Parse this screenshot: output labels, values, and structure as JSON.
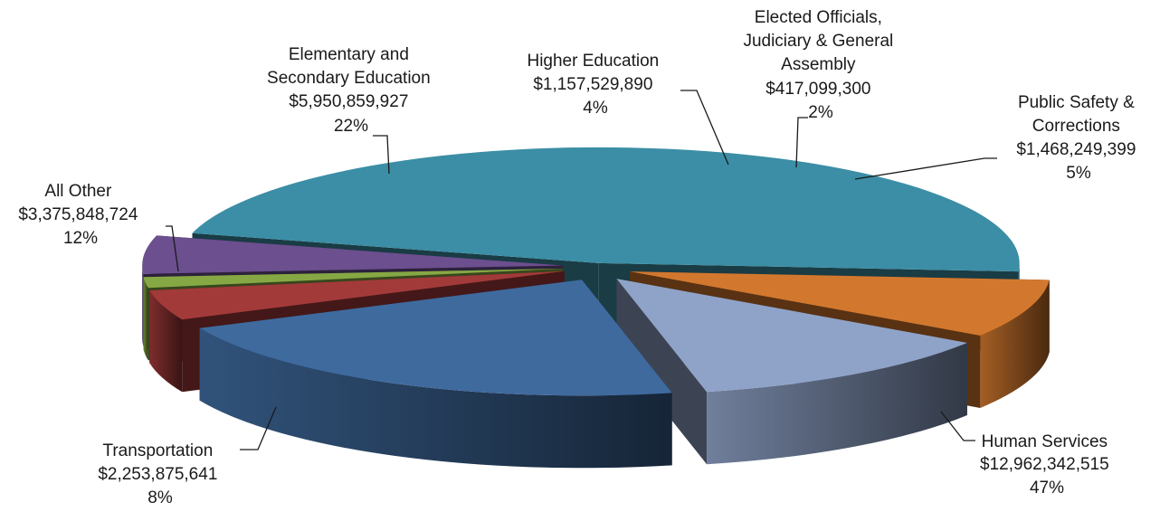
{
  "chart_data": {
    "type": "pie",
    "style": "3d-exploded",
    "legend": "none",
    "slices": [
      {
        "name": "Human Services",
        "value": 12962342515,
        "value_label": "$12,962,342,515",
        "percent_label": "47%",
        "color": "#3B8EA5"
      },
      {
        "name": "Transportation",
        "value": 2253875641,
        "value_label": "$2,253,875,641",
        "percent_label": "8%",
        "color": "#D2782E"
      },
      {
        "name": "All Other",
        "value": 3375848724,
        "value_label": "$3,375,848,724",
        "percent_label": "12%",
        "color": "#8FA3C8"
      },
      {
        "name": "Elementary and Secondary Education",
        "value": 5950859927,
        "value_label": "$5,950,859,927",
        "percent_label": "22%",
        "color": "#3F6A9E"
      },
      {
        "name": "Higher Education",
        "value": 1157529890,
        "value_label": "$1,157,529,890",
        "percent_label": "4%",
        "color": "#A33A3A"
      },
      {
        "name": "Elected Officials, Judiciary & General Assembly",
        "value": 417099300,
        "value_label": "$417,099,300",
        "percent_label": "2%",
        "color": "#86A844"
      },
      {
        "name": "Public Safety & Corrections",
        "value": 1468249399,
        "value_label": "$1,468,249,399",
        "percent_label": "5%",
        "color": "#6B4F8E"
      }
    ]
  },
  "labels": {
    "human_services": {
      "line1": "Human Services",
      "line2": "$12,962,342,515",
      "line3": "47%"
    },
    "transportation": {
      "line1": "Transportation",
      "line2": "$2,253,875,641",
      "line3": "8%"
    },
    "all_other": {
      "line1": "All Other",
      "line2": "$3,375,848,724",
      "line3": "12%"
    },
    "elementary": {
      "line1": "Elementary and",
      "line2": "Secondary Education",
      "line3": "$5,950,859,927",
      "line4": "22%"
    },
    "higher_ed": {
      "line1": "Higher Education",
      "line2": "$1,157,529,890",
      "line3": "4%"
    },
    "elected": {
      "line1": "Elected Officials,",
      "line2": "Judiciary & General",
      "line3": "Assembly",
      "line4": "$417,099,300",
      "line5": "2%"
    },
    "public_safety": {
      "line1": "Public Safety &",
      "line2": "Corrections",
      "line3": "$1,468,249,399",
      "line4": "5%"
    }
  }
}
